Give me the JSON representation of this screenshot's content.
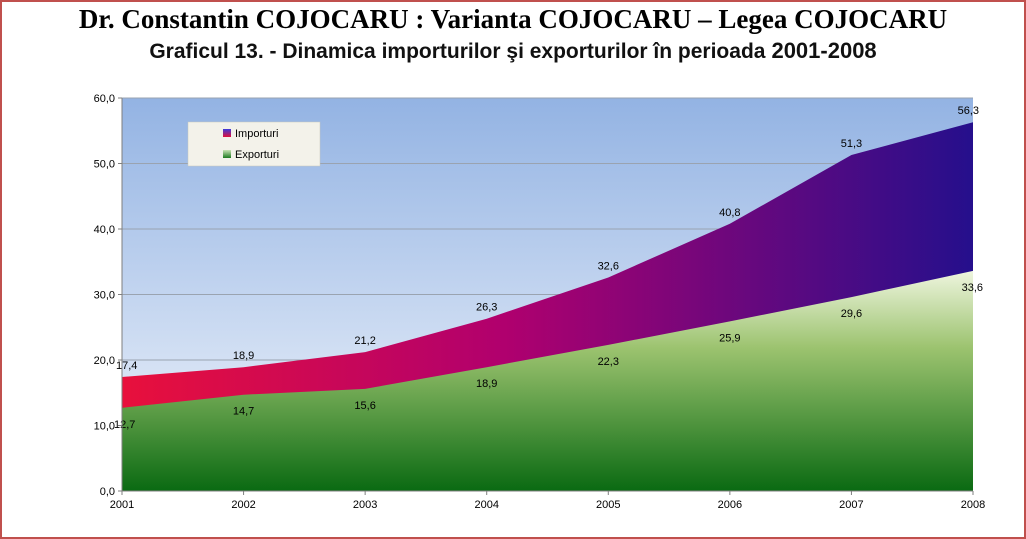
{
  "header": {
    "title": "Dr. Constantin COJOCARU : Varianta COJOCARU – Legea COJOCARU"
  },
  "chart_data": {
    "type": "area",
    "title": "Graficul 13.  - Dinamica importurilor şi exporturilor în perioada",
    "title_years": "2001-2008",
    "x": [
      "2001",
      "2002",
      "2003",
      "2004",
      "2005",
      "2006",
      "2007",
      "2008"
    ],
    "y_ticks": [
      "0,0",
      "10,0",
      "20,0",
      "30,0",
      "40,0",
      "50,0",
      "60,0"
    ],
    "ylim": [
      0,
      60
    ],
    "grid": true,
    "legend_position": "top-left",
    "series": [
      {
        "name": "Importuri",
        "values": [
          17.4,
          18.9,
          21.2,
          26.3,
          32.6,
          40.8,
          51.3,
          56.3
        ],
        "labels": [
          "17,4",
          "18,9",
          "21,2",
          "26,3",
          "32,6",
          "40,8",
          "51,3",
          "56,3"
        ],
        "color": "#8b007a"
      },
      {
        "name": "Exporturi",
        "values": [
          12.7,
          14.7,
          15.6,
          18.9,
          22.3,
          25.9,
          29.6,
          33.6
        ],
        "labels": [
          "12,7",
          "14,7",
          "15,6",
          "18,9",
          "22,3",
          "25,9",
          "29,6",
          "33,6"
        ],
        "color": "#2e8b2e"
      }
    ]
  }
}
